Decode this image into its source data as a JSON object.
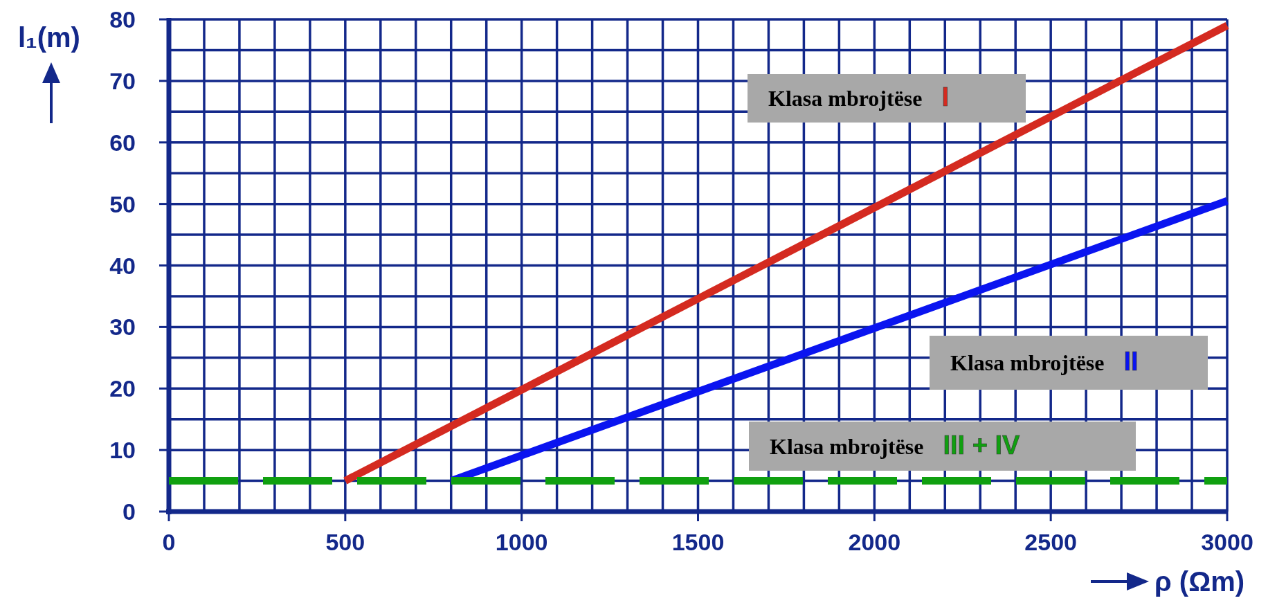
{
  "chart_data": {
    "type": "line",
    "xlabel": "ρ (Ωm)",
    "ylabel": "l₁(m)",
    "xlim": [
      0,
      3000
    ],
    "ylim": [
      0,
      80
    ],
    "xticks": [
      0,
      {
        "value": 100,
        "label": null
      },
      {
        "value": 200,
        "label": null
      },
      {
        "value": 300,
        "label": null
      },
      {
        "value": 400,
        "label": null
      },
      500,
      {
        "value": 600,
        "label": null
      },
      {
        "value": 700,
        "label": null
      },
      {
        "value": 800,
        "label": null
      },
      {
        "value": 900,
        "label": null
      },
      1000,
      {
        "value": 1100,
        "label": null
      },
      {
        "value": 1200,
        "label": null
      },
      {
        "value": 1300,
        "label": null
      },
      {
        "value": 1400,
        "label": null
      },
      1500,
      {
        "value": 1600,
        "label": null
      },
      {
        "value": 1700,
        "label": null
      },
      {
        "value": 1800,
        "label": null
      },
      {
        "value": 1900,
        "label": null
      },
      2000,
      {
        "value": 2100,
        "label": null
      },
      {
        "value": 2200,
        "label": null
      },
      {
        "value": 2300,
        "label": null
      },
      {
        "value": 2400,
        "label": null
      },
      2500,
      {
        "value": 2600,
        "label": null
      },
      {
        "value": 2700,
        "label": null
      },
      {
        "value": 2800,
        "label": null
      },
      {
        "value": 2900,
        "label": null
      },
      {
        "value": 3000,
        "label": "3000"
      }
    ],
    "yticks": [
      0,
      {
        "value": 5,
        "label": null
      },
      10,
      {
        "value": 15,
        "label": null
      },
      20,
      {
        "value": 25,
        "label": null
      },
      30,
      {
        "value": 35,
        "label": null
      },
      40,
      {
        "value": 45,
        "label": null
      },
      50,
      {
        "value": 55,
        "label": null
      },
      60,
      {
        "value": 65,
        "label": null
      },
      70,
      {
        "value": 75,
        "label": null
      },
      80
    ],
    "grid": true,
    "marker": "none",
    "series": [
      {
        "name": "Klasa mbrojtëse I",
        "color": "#d42a20",
        "x": [
          500,
          3000
        ],
        "values": [
          5,
          79
        ],
        "line_style": "solid"
      },
      {
        "name": "Klasa mbrojtëse II",
        "color": "#0a14f0",
        "x": [
          800,
          3000
        ],
        "values": [
          5,
          50.5
        ],
        "line_style": "solid"
      },
      {
        "name": "Klasa mbrojtëse III + IV",
        "color": "#10a010",
        "x": [
          0,
          3000
        ],
        "values": [
          5,
          5
        ],
        "line_style": "dashed"
      }
    ]
  }
}
